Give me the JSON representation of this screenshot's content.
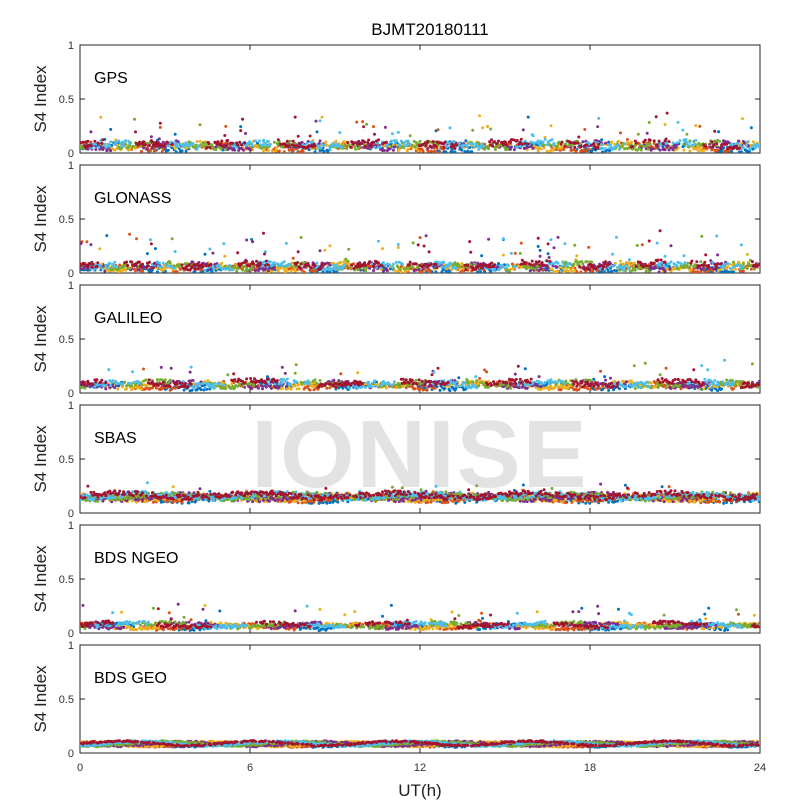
{
  "chart_data": {
    "type": "scatter",
    "title": "BJMT20180111",
    "xlabel": "UT(h)",
    "ylabel": "S4 Index",
    "xlim": [
      0,
      24
    ],
    "xticks": [
      0,
      6,
      12,
      18,
      24
    ],
    "ylim": [
      0,
      1
    ],
    "yticks": [
      0,
      0.5,
      1
    ],
    "grid": false,
    "watermark": "IONISE",
    "colors": [
      "#0072BD",
      "#D95319",
      "#EDB120",
      "#7E2F8E",
      "#77AC30",
      "#4DBEEE",
      "#A2142F"
    ],
    "panels": [
      {
        "label": "GPS",
        "baseline": 0.07,
        "spread": 0.035,
        "spike_rate": 0.05,
        "spike_max": 0.25,
        "segment_len": 2.5
      },
      {
        "label": "GLONASS",
        "baseline": 0.06,
        "spread": 0.035,
        "spike_rate": 0.06,
        "spike_max": 0.3,
        "segment_len": 2.0
      },
      {
        "label": "GALILEO",
        "baseline": 0.08,
        "spread": 0.03,
        "spike_rate": 0.04,
        "spike_max": 0.2,
        "segment_len": 3.0
      },
      {
        "label": "SBAS",
        "baseline": 0.15,
        "spread": 0.03,
        "spike_rate": 0.02,
        "spike_max": 0.12,
        "segment_len": 24
      },
      {
        "label": "BDS NGEO",
        "baseline": 0.07,
        "spread": 0.02,
        "spike_rate": 0.03,
        "spike_max": 0.2,
        "segment_len": 3.5
      },
      {
        "label": "BDS GEO",
        "baseline": 0.085,
        "spread": 0.01,
        "spike_rate": 0.0,
        "spike_max": 0.0,
        "segment_len": 24
      }
    ]
  }
}
